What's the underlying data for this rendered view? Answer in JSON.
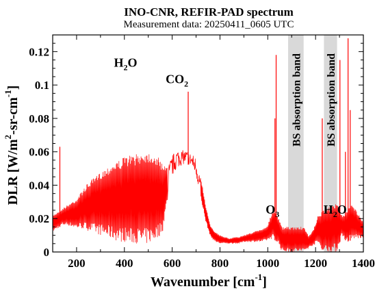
{
  "chart_data": {
    "type": "line",
    "title": "INO-CNR, REFIR-PAD spectrum",
    "subtitle": "Measurement data: 20250411_0605 UTC",
    "xlabel": {
      "main": "Wavenumber [cm",
      "sup": "-1",
      "end": "]"
    },
    "ylabel": {
      "p1": "DLR [W/m",
      "sup1": "2",
      "p2": "-sr-cm",
      "sup2": "-1",
      "p3": "]"
    },
    "xlim": [
      100,
      1400
    ],
    "ylim": [
      0,
      0.13
    ],
    "xticks": [
      200,
      400,
      600,
      800,
      1000,
      1200,
      1400
    ],
    "yticks": [
      0,
      0.02,
      0.04,
      0.06,
      0.08,
      0.1,
      0.12
    ],
    "xtick_labels": [
      "200",
      "400",
      "600",
      "800",
      "1000",
      "1200",
      "1400"
    ],
    "ytick_labels": [
      "0",
      "0.02",
      "0.04",
      "0.06",
      "0.08",
      "0.1",
      "0.12"
    ],
    "grid": false,
    "line_color": "#ff0000",
    "band_color": "#d9d9d9",
    "bands": [
      {
        "label": "BS absorption band",
        "x_range": [
          1085,
          1150
        ]
      },
      {
        "label": "BS absorption band",
        "x_range": [
          1235,
          1290
        ]
      }
    ],
    "annotations": [
      {
        "id": "h2o-left",
        "main": "H",
        "sub": "2",
        "end": "O",
        "x": 405,
        "y": 0.111
      },
      {
        "id": "co2",
        "main": "CO",
        "sub": "2",
        "end": "",
        "x": 620,
        "y": 0.101
      },
      {
        "id": "o3",
        "main": "O",
        "sub": "3",
        "end": "",
        "x": 1020,
        "y": 0.023
      },
      {
        "id": "h2o-right",
        "main": "H",
        "sub": "2",
        "end": "O",
        "x": 1282,
        "y": 0.023
      }
    ],
    "envelope": {
      "x": [
        100,
        120,
        140,
        160,
        180,
        200,
        220,
        240,
        260,
        280,
        300,
        320,
        340,
        360,
        380,
        400,
        420,
        440,
        460,
        480,
        500,
        520,
        540,
        560,
        580,
        600,
        620,
        640,
        660,
        680,
        700,
        720,
        740,
        760,
        780,
        800,
        820,
        840,
        860,
        880,
        900,
        920,
        940,
        960,
        980,
        1000,
        1020,
        1040,
        1060,
        1085,
        1150,
        1170,
        1190,
        1210,
        1235,
        1290,
        1310,
        1330,
        1350,
        1370,
        1390,
        1400
      ],
      "upper": [
        0.022,
        0.024,
        0.026,
        0.028,
        0.03,
        0.032,
        0.036,
        0.04,
        0.043,
        0.045,
        0.048,
        0.05,
        0.052,
        0.054,
        0.055,
        0.057,
        0.058,
        0.058,
        0.059,
        0.06,
        0.06,
        0.059,
        0.057,
        0.053,
        0.052,
        0.058,
        0.062,
        0.061,
        0.061,
        0.059,
        0.057,
        0.045,
        0.028,
        0.016,
        0.012,
        0.01,
        0.009,
        0.008,
        0.009,
        0.009,
        0.01,
        0.011,
        0.012,
        0.013,
        0.014,
        0.016,
        0.025,
        0.022,
        0.015,
        0.015,
        0.015,
        0.01,
        0.013,
        0.022,
        0.025,
        0.03,
        0.022,
        0.024,
        0.03,
        0.025,
        0.02,
        0.018
      ],
      "lower": [
        0.012,
        0.014,
        0.016,
        0.016,
        0.015,
        0.014,
        0.014,
        0.013,
        0.012,
        0.011,
        0.01,
        0.009,
        0.008,
        0.007,
        0.006,
        0.006,
        0.005,
        0.005,
        0.005,
        0.004,
        0.005,
        0.006,
        0.008,
        0.012,
        0.03,
        0.045,
        0.05,
        0.052,
        0.053,
        0.051,
        0.045,
        0.032,
        0.018,
        0.009,
        0.006,
        0.005,
        0.005,
        0.005,
        0.005,
        0.005,
        0.006,
        0.006,
        0.006,
        0.006,
        0.006,
        0.007,
        0.008,
        0.006,
        0.0,
        0.0,
        0.0,
        0.002,
        0.004,
        0.005,
        0.0,
        0.0,
        0.01,
        0.006,
        0.007,
        0.008,
        0.008,
        0.008
      ]
    },
    "spikes": [
      {
        "x": 130,
        "y": 0.063
      },
      {
        "x": 667,
        "y": 0.096
      },
      {
        "x": 1035,
        "y": 0.118
      },
      {
        "x": 1030,
        "y": 0.08
      },
      {
        "x": 1228,
        "y": 0.08
      },
      {
        "x": 1302,
        "y": 0.115
      },
      {
        "x": 1336,
        "y": 0.128
      },
      {
        "x": 1345,
        "y": 0.085
      },
      {
        "x": 1325,
        "y": 0.06
      }
    ]
  }
}
